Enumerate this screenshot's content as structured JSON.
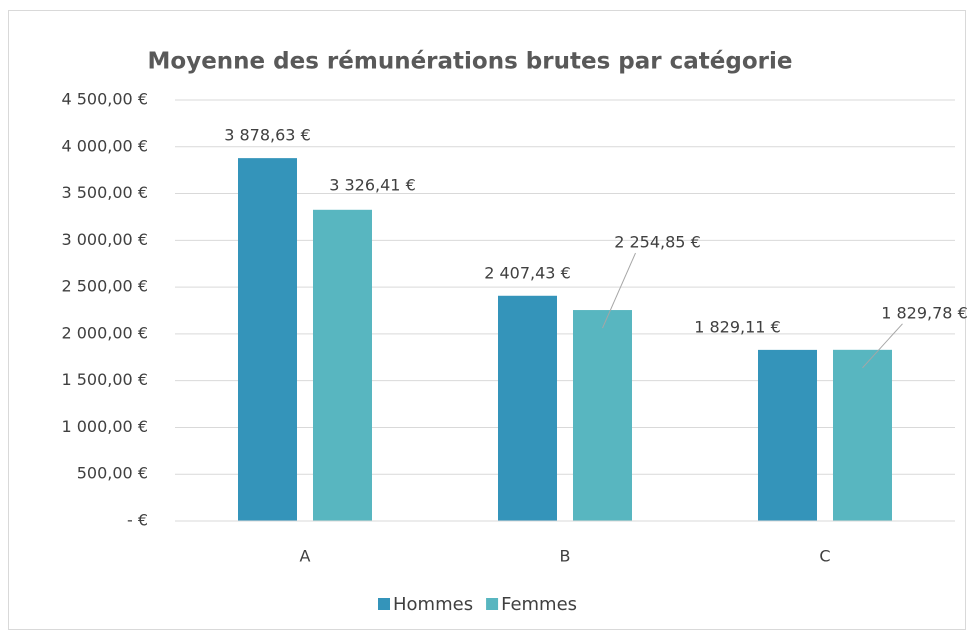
{
  "chart_data": {
    "type": "bar",
    "title": "Moyenne des rémunérations brutes par catégorie",
    "categories": [
      "A",
      "B",
      "C"
    ],
    "series": [
      {
        "name": "Hommes",
        "color": "#3494ba",
        "values": [
          3878.63,
          2407.43,
          1829.11
        ],
        "value_labels": [
          "3 878,63 €",
          "2 407,43 €",
          "1 829,11 €"
        ]
      },
      {
        "name": "Femmes",
        "color": "#58b6c0",
        "values": [
          3326.41,
          2254.85,
          1829.78
        ],
        "value_labels": [
          "3 326,41 €",
          "2 254,85 €",
          "1 829,78 €"
        ]
      }
    ],
    "ylim": [
      0,
      4500
    ],
    "yticks": [
      {
        "value": 0,
        "label": "- €"
      },
      {
        "value": 500,
        "label": "500,00 €"
      },
      {
        "value": 1000,
        "label": "1 000,00 €"
      },
      {
        "value": 1500,
        "label": "1 500,00 €"
      },
      {
        "value": 2000,
        "label": "2 000,00 €"
      },
      {
        "value": 2500,
        "label": "2 500,00 €"
      },
      {
        "value": 3000,
        "label": "3 000,00 €"
      },
      {
        "value": 3500,
        "label": "3 500,00 €"
      },
      {
        "value": 4000,
        "label": "4 000,00 €"
      },
      {
        "value": 4500,
        "label": "4 500,00 €"
      }
    ],
    "grid": true,
    "legend": "bottom"
  }
}
